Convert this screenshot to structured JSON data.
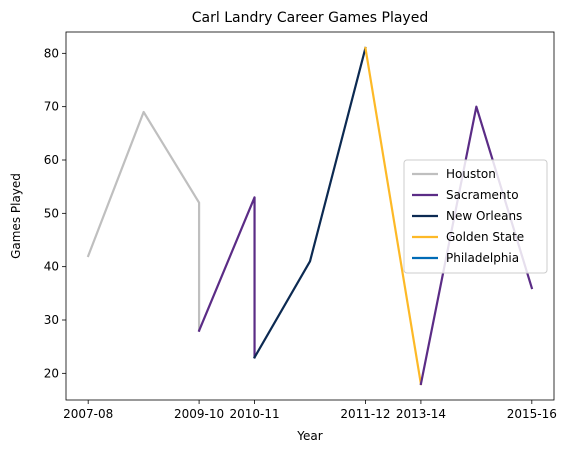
{
  "chart_data": {
    "type": "line",
    "title": "Carl Landry Career Games Played",
    "xlabel": "Year",
    "ylabel": "Games Played",
    "ylim": [
      15,
      84
    ],
    "yticks": [
      20,
      30,
      40,
      50,
      60,
      70,
      80
    ],
    "xticks": [
      {
        "x": 0,
        "label": "2007-08"
      },
      {
        "x": 2,
        "label": "2009-10"
      },
      {
        "x": 3,
        "label": "2010-11"
      },
      {
        "x": 5,
        "label": "2011-12"
      },
      {
        "x": 6,
        "label": "2013-14"
      },
      {
        "x": 8,
        "label": "2015-16"
      }
    ],
    "xlim": [
      -0.4,
      8.4
    ],
    "grid": false,
    "legend_position": "center-right",
    "series": [
      {
        "name": "Houston",
        "color": "#bfbfbf",
        "points": [
          [
            0,
            42
          ],
          [
            1,
            69
          ],
          [
            2,
            52
          ],
          [
            2,
            28
          ]
        ]
      },
      {
        "name": "Sacramento",
        "color": "#5b2c86",
        "points": [
          [
            2,
            28
          ],
          [
            3,
            53
          ],
          [
            3,
            23
          ]
        ]
      },
      {
        "name": "New Orleans",
        "color": "#0c2a52",
        "points": [
          [
            3,
            23
          ],
          [
            4,
            41
          ],
          [
            5,
            81
          ]
        ]
      },
      {
        "name": "Golden State",
        "color": "#fdb927",
        "points": [
          [
            5,
            81
          ],
          [
            6,
            18
          ]
        ]
      },
      {
        "name": "Sacramento",
        "color": "#5b2c86",
        "points": [
          [
            6,
            18
          ],
          [
            7,
            70
          ],
          [
            8,
            36
          ]
        ],
        "legend": false
      },
      {
        "name": "Philadelphia",
        "color": "#006bb6",
        "points": [],
        "legend": true
      }
    ]
  }
}
